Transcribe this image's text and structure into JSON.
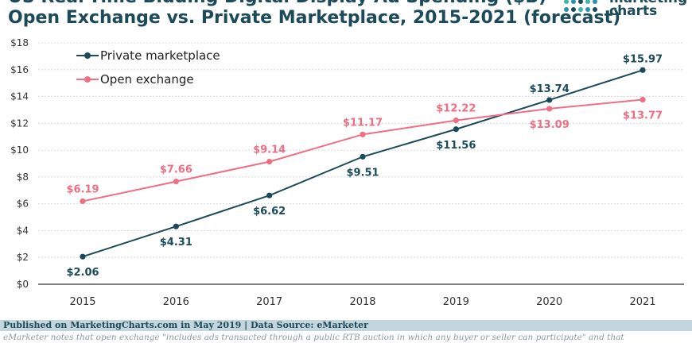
{
  "header": {
    "title_line1": "US Real-Time Bidding Digital Display Ad Spending ($B)",
    "title_line2": "Open Exchange vs. Private Marketplace, 2015-2021 (forecast)"
  },
  "logo": {
    "word1": "marketing",
    "word2": "charts"
  },
  "footer": {
    "published": "Published on MarketingCharts.com in May 2019 | Data Source: eMarketer",
    "note": "eMarketer notes that open exchange \"includes ads transacted through a public RTB auction in which any buyer or seller can participate\" and that"
  },
  "colors": {
    "private": "#1b4a5a",
    "open": "#f06e82",
    "grid": "#d8d8d8",
    "axis": "#333333",
    "title": "#1b4a5a",
    "logo_dots": [
      "#3bb8a8",
      "#2a8fb8",
      "#1b4a5a"
    ]
  },
  "chart_data": {
    "type": "line",
    "title": "Open Exchange vs. Private Marketplace, 2015-2021 (forecast)",
    "xlabel": "",
    "ylabel": "",
    "categories": [
      "2015",
      "2016",
      "2017",
      "2018",
      "2019",
      "2020",
      "2021"
    ],
    "ylim": [
      0,
      18
    ],
    "yticks": [
      0,
      2,
      4,
      6,
      8,
      10,
      12,
      14,
      16,
      18
    ],
    "ytick_labels": [
      "$0",
      "$2",
      "$4",
      "$6",
      "$8",
      "$10",
      "$12",
      "$14",
      "$16",
      "$18"
    ],
    "grid": true,
    "legend_position": "top-left",
    "series": [
      {
        "name": "Private marketplace",
        "values": [
          2.06,
          4.31,
          6.62,
          9.51,
          11.56,
          13.74,
          15.97
        ],
        "labels": [
          "$2.06",
          "$4.31",
          "$6.62",
          "$9.51",
          "$11.56",
          "$13.74",
          "$15.97"
        ]
      },
      {
        "name": "Open exchange",
        "values": [
          6.19,
          7.66,
          9.14,
          11.17,
          12.22,
          13.09,
          13.77
        ],
        "labels": [
          "$6.19",
          "$7.66",
          "$9.14",
          "$11.17",
          "$12.22",
          "$13.09",
          "$13.77"
        ]
      }
    ]
  }
}
